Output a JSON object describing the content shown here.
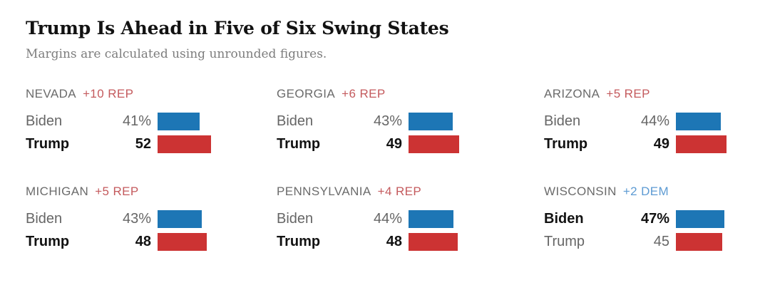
{
  "header": {
    "title": "Trump Is Ahead in Five of Six Swing States",
    "subtitle": "Margins are calculated using unrounded figures."
  },
  "colors": {
    "dem_bar": "#1d76b5",
    "rep_bar": "#cc3333",
    "dem_label": "#5d9bd3",
    "rep_label": "#c45a5d",
    "title_text": "#121212",
    "subtitle_text": "#7d7d7d",
    "state_text": "#6b6b6b",
    "muted_text": "#666666"
  },
  "chart_data": {
    "type": "bar",
    "title": "Trump Is Ahead in Five of Six Swing States",
    "subtitle": "Margins are calculated using unrounded figures.",
    "orientation": "horizontal",
    "unit": "percent",
    "xlim": [
      0,
      100
    ],
    "grid": false,
    "legend": "none",
    "panels": [
      {
        "state": "NEVADA",
        "margin": "+10 REP",
        "leading_party": "REP",
        "rows": [
          {
            "candidate": "Biden",
            "value": 41,
            "label": "41%",
            "party": "DEM",
            "leader": false
          },
          {
            "candidate": "Trump",
            "value": 52,
            "label": "52",
            "party": "REP",
            "leader": true
          }
        ]
      },
      {
        "state": "GEORGIA",
        "margin": "+6 REP",
        "leading_party": "REP",
        "rows": [
          {
            "candidate": "Biden",
            "value": 43,
            "label": "43%",
            "party": "DEM",
            "leader": false
          },
          {
            "candidate": "Trump",
            "value": 49,
            "label": "49",
            "party": "REP",
            "leader": true
          }
        ]
      },
      {
        "state": "ARIZONA",
        "margin": "+5 REP",
        "leading_party": "REP",
        "rows": [
          {
            "candidate": "Biden",
            "value": 44,
            "label": "44%",
            "party": "DEM",
            "leader": false
          },
          {
            "candidate": "Trump",
            "value": 49,
            "label": "49",
            "party": "REP",
            "leader": true
          }
        ]
      },
      {
        "state": "MICHIGAN",
        "margin": "+5 REP",
        "leading_party": "REP",
        "rows": [
          {
            "candidate": "Biden",
            "value": 43,
            "label": "43%",
            "party": "DEM",
            "leader": false
          },
          {
            "candidate": "Trump",
            "value": 48,
            "label": "48",
            "party": "REP",
            "leader": true
          }
        ]
      },
      {
        "state": "PENNSYLVANIA",
        "margin": "+4 REP",
        "leading_party": "REP",
        "rows": [
          {
            "candidate": "Biden",
            "value": 44,
            "label": "44%",
            "party": "DEM",
            "leader": false
          },
          {
            "candidate": "Trump",
            "value": 48,
            "label": "48",
            "party": "REP",
            "leader": true
          }
        ]
      },
      {
        "state": "WISCONSIN",
        "margin": "+2 DEM",
        "leading_party": "DEM",
        "rows": [
          {
            "candidate": "Biden",
            "value": 47,
            "label": "47%",
            "party": "DEM",
            "leader": true
          },
          {
            "candidate": "Trump",
            "value": 45,
            "label": "45",
            "party": "REP",
            "leader": false
          }
        ]
      }
    ]
  }
}
